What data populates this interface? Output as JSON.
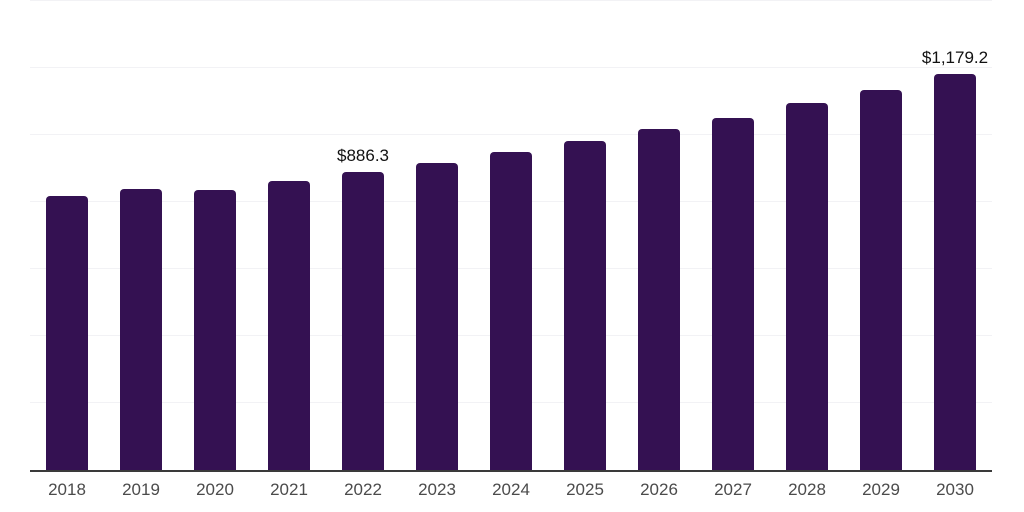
{
  "chart_data": {
    "type": "bar",
    "title": "",
    "xlabel": "",
    "ylabel": "",
    "categories": [
      "2018",
      "2019",
      "2020",
      "2021",
      "2022",
      "2023",
      "2024",
      "2025",
      "2026",
      "2027",
      "2028",
      "2029",
      "2030"
    ],
    "values": [
      817,
      838,
      834,
      861,
      886.3,
      916,
      947,
      979,
      1016,
      1050,
      1092,
      1132,
      1179.2
    ],
    "value_prefix": "$",
    "data_labels": [
      {
        "category": "2022",
        "text": "$886.3"
      },
      {
        "category": "2030",
        "text": "$1,179.2"
      }
    ],
    "ylim": [
      0,
      1400
    ],
    "grid_step": 200,
    "grid": "horizontal-only",
    "y_axis_labels_visible": false,
    "legend": "none"
  },
  "style": {
    "bar_color": "#341152",
    "gridline_color": "#f2f2f5",
    "axis_line_color": "#3a3a3a",
    "tick_label_color": "#4b4b4b",
    "data_label_color": "#111111",
    "background_color": "#ffffff"
  }
}
